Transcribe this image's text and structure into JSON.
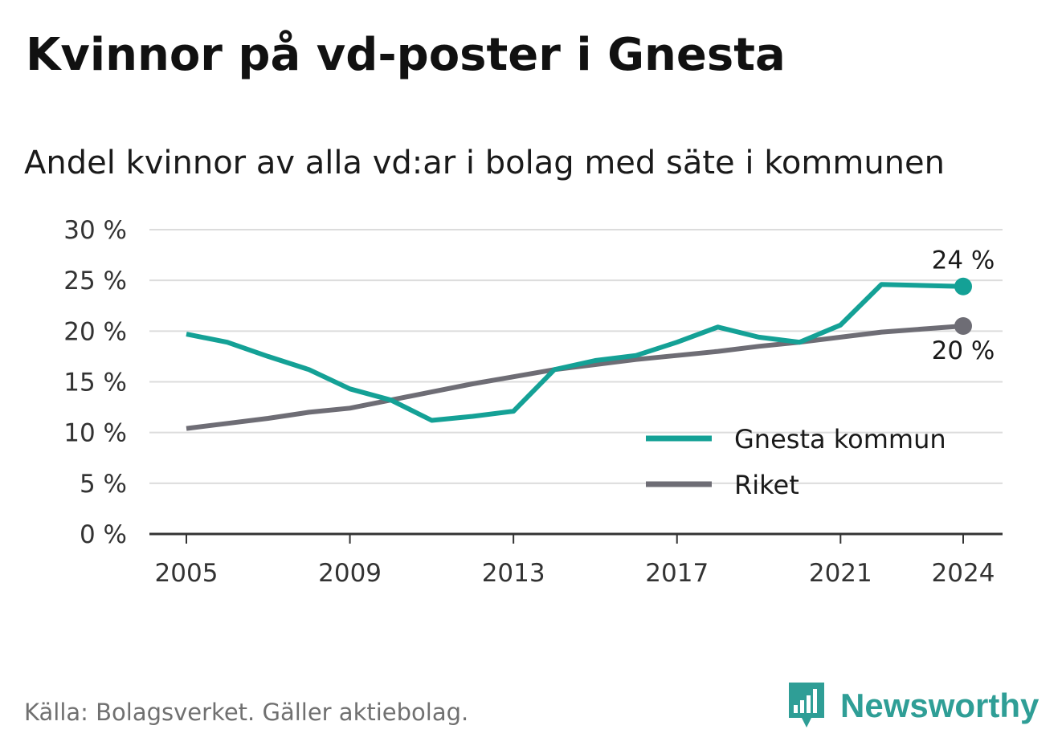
{
  "header": {
    "title": "Kvinnor på vd-poster i Gnesta"
  },
  "footer": {
    "source": "Källa: Bolagsverket. Gäller aktiebolag.",
    "brand_name": "Newsworthy",
    "brand_icon": "bar-chart-speech-bubble-icon"
  },
  "chart_data": {
    "type": "line",
    "title": "Kvinnor på vd-poster i Gnesta",
    "subtitle": "Andel kvinnor av alla vd:ar i bolag med säte i kommunen",
    "xlabel": "",
    "ylabel": "",
    "xlim": [
      2005,
      2024
    ],
    "ylim": [
      0,
      30
    ],
    "x_ticks": [
      2005,
      2009,
      2013,
      2017,
      2021,
      2024
    ],
    "y_ticks": [
      0,
      5,
      10,
      15,
      20,
      25,
      30
    ],
    "y_tick_labels": [
      "0 %",
      "5 %",
      "10 %",
      "15 %",
      "20 %",
      "25 %",
      "30 %"
    ],
    "grid": "horizontal",
    "legend_position": "bottom-right",
    "x": [
      2005,
      2006,
      2007,
      2008,
      2009,
      2010,
      2011,
      2012,
      2013,
      2014,
      2015,
      2016,
      2017,
      2018,
      2019,
      2020,
      2021,
      2022,
      2023,
      2024
    ],
    "series": [
      {
        "name": "Gnesta kommun",
        "color": "#14a196",
        "values": [
          19.7,
          18.9,
          17.5,
          16.2,
          14.3,
          13.2,
          11.2,
          11.6,
          12.1,
          16.2,
          17.1,
          17.6,
          18.9,
          20.4,
          19.4,
          18.9,
          20.6,
          24.6,
          24.5,
          24.4
        ],
        "end_label": "24 %"
      },
      {
        "name": "Riket",
        "color": "#6e6d75",
        "values": [
          10.4,
          10.9,
          11.4,
          12.0,
          12.4,
          13.2,
          14.0,
          14.8,
          15.5,
          16.2,
          16.7,
          17.2,
          17.6,
          18.0,
          18.5,
          18.9,
          19.4,
          19.9,
          20.2,
          20.5
        ],
        "end_label": "20 %"
      }
    ]
  }
}
